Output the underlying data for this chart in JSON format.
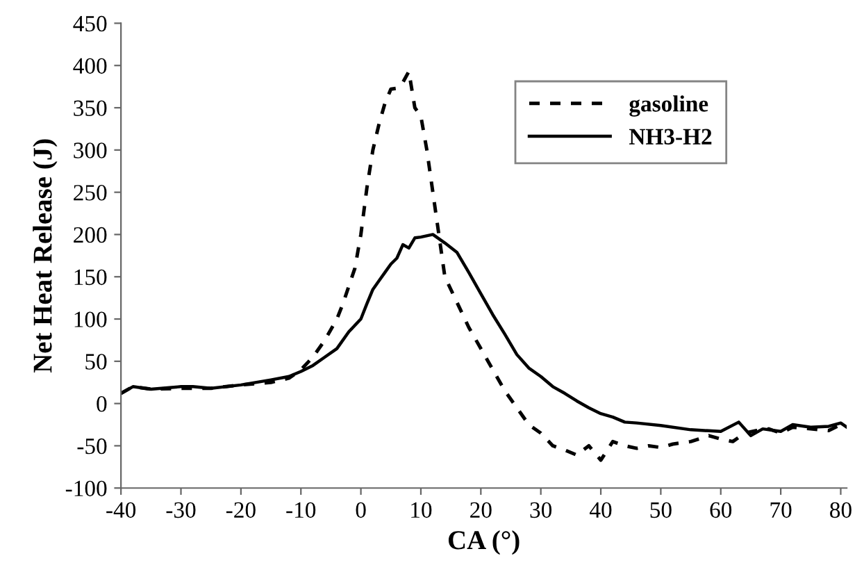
{
  "chart_data": {
    "type": "line",
    "xlabel": "CA (°)",
    "ylabel": "Net Heat Release (J)",
    "xlim": [
      -40,
      81
    ],
    "xticks": [
      -40,
      -30,
      -20,
      -10,
      0,
      10,
      20,
      30,
      40,
      50,
      60,
      70,
      80
    ],
    "ylim": [
      -100,
      450
    ],
    "yticks": [
      -100,
      -50,
      0,
      50,
      100,
      150,
      200,
      250,
      300,
      350,
      400,
      450
    ],
    "grid": false,
    "legend": "top right",
    "marker": "none",
    "series": [
      {
        "name": "gasoline",
        "color": "#000000",
        "line_style": "dashed",
        "x": [
          -40,
          -38,
          -35,
          -30,
          -25,
          -20,
          -15,
          -12,
          -10,
          -8,
          -6,
          -4,
          -3,
          -1,
          0,
          1,
          2,
          3,
          4,
          5,
          6,
          7,
          8,
          9,
          10,
          11,
          12,
          13,
          14,
          15,
          16,
          17,
          18,
          20,
          22,
          24,
          26,
          28,
          30,
          32,
          34,
          36,
          38,
          40,
          42,
          44,
          46,
          48,
          50,
          52,
          55,
          58,
          60,
          62,
          64,
          66,
          68,
          70,
          72,
          75,
          78,
          80,
          81
        ],
        "values": [
          12,
          20,
          17,
          18,
          18,
          22,
          25,
          30,
          40,
          55,
          75,
          100,
          118,
          160,
          200,
          255,
          300,
          330,
          355,
          372,
          373,
          380,
          393,
          350,
          340,
          300,
          250,
          200,
          150,
          135,
          120,
          105,
          90,
          65,
          40,
          15,
          -5,
          -25,
          -35,
          -50,
          -55,
          -61,
          -50,
          -67,
          -45,
          -50,
          -53,
          -50,
          -52,
          -48,
          -45,
          -38,
          -42,
          -45,
          -35,
          -32,
          -30,
          -35,
          -28,
          -30,
          -32,
          -25,
          -28
        ]
      },
      {
        "name": "NH3-H2",
        "color": "#000000",
        "line_style": "solid",
        "x": [
          -40,
          -38,
          -35,
          -30,
          -28,
          -25,
          -20,
          -15,
          -12,
          -10,
          -8,
          -6,
          -4,
          -2,
          0,
          1,
          2,
          3,
          4,
          5,
          6,
          7,
          8,
          9,
          10,
          12,
          14,
          16,
          18,
          20,
          22,
          24,
          26,
          28,
          30,
          32,
          34,
          36,
          38,
          40,
          42,
          44,
          46,
          50,
          55,
          60,
          63,
          65,
          67,
          70,
          72,
          75,
          78,
          80,
          81
        ],
        "values": [
          12,
          20,
          17,
          20,
          20,
          18,
          22,
          28,
          32,
          38,
          45,
          55,
          65,
          85,
          100,
          118,
          135,
          145,
          155,
          165,
          172,
          188,
          184,
          196,
          197,
          200,
          190,
          179,
          155,
          130,
          105,
          82,
          58,
          42,
          32,
          20,
          12,
          3,
          -5,
          -12,
          -16,
          -22,
          -23,
          -26,
          -31,
          -33,
          -22,
          -38,
          -30,
          -33,
          -25,
          -28,
          -27,
          -23,
          -28
        ]
      }
    ]
  }
}
